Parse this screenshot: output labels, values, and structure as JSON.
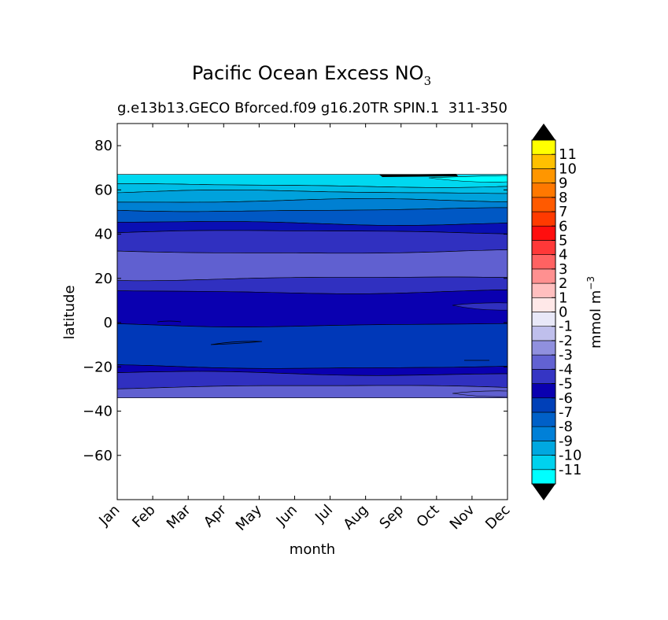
{
  "chart_data": {
    "type": "heatmap",
    "title": "Pacific Ocean Excess NO",
    "title_subscript": "3",
    "subtitle_left": "g.e13b13.GECO Bforced.f09 g16.20TR SPIN.1",
    "subtitle_right": "311-350",
    "xlabel": "month",
    "ylabel": "latitude",
    "x_categories": [
      "Jan",
      "Feb",
      "Mar",
      "Apr",
      "May",
      "Jun",
      "Jul",
      "Aug",
      "Sep",
      "Oct",
      "Nov",
      "Dec"
    ],
    "y_ticks": [
      80,
      60,
      40,
      20,
      0,
      -20,
      -40,
      -60
    ],
    "y_tick_labels": [
      "80",
      "60",
      "40",
      "20",
      "0",
      "−20",
      "−40",
      "−60"
    ],
    "ylim": [
      -80,
      90
    ],
    "data_lat_range": [
      -34,
      67
    ],
    "colorbar": {
      "label": "mmol m",
      "label_superscript": "−3",
      "levels": [
        -12,
        -11,
        -10,
        -9,
        -8,
        -7,
        -6,
        -5,
        -4,
        -3,
        -2,
        -1,
        0,
        1,
        2,
        3,
        4,
        5,
        6,
        7,
        8,
        9,
        10,
        11,
        12
      ],
      "tick_labels": [
        "11",
        "10",
        "9",
        "8",
        "7",
        "6",
        "5",
        "4",
        "3",
        "2",
        "1",
        "0",
        "-1",
        "-2",
        "-3",
        "-4",
        "-5",
        "-6",
        "-7",
        "-8",
        "-9",
        "-10",
        "-11"
      ],
      "colors": [
        "#00ffff",
        "#00d2ee",
        "#00a8e0",
        "#0080d8",
        "#0060c8",
        "#0040b8",
        "#0a00b0",
        "#3535c4",
        "#6262d2",
        "#9090de",
        "#bfbfec",
        "#e8e8f8",
        "#ffe8e8",
        "#ffbfbf",
        "#ff9090",
        "#ff6262",
        "#ff3838",
        "#ff0e0e",
        "#ff3a00",
        "#ff5a00",
        "#ff7800",
        "#ff9600",
        "#ffc000",
        "#ffff00"
      ],
      "extend_color": "#000000"
    },
    "bands": [
      {
        "lat": [
          62,
          67
        ],
        "value": -11,
        "color": "#00d8f0"
      },
      {
        "lat": [
          59,
          62
        ],
        "value": -10,
        "color": "#00bde6"
      },
      {
        "lat": [
          55,
          59
        ],
        "value": -9,
        "color": "#00a2dc"
      },
      {
        "lat": [
          51,
          55
        ],
        "value": -8,
        "color": "#0080d2"
      },
      {
        "lat": [
          45,
          51
        ],
        "value": -7,
        "color": "#0058c4"
      },
      {
        "lat": [
          41,
          45
        ],
        "value": -6,
        "color": "#0a10b4"
      },
      {
        "lat": [
          32,
          41
        ],
        "value": -5,
        "color": "#3030c0"
      },
      {
        "lat": [
          20,
          32
        ],
        "value": -4,
        "color": "#6060d0"
      },
      {
        "lat": [
          14,
          20
        ],
        "value": -5,
        "color": "#3030c0"
      },
      {
        "lat": [
          -1,
          14
        ],
        "value": -6,
        "color": "#0a00b0"
      },
      {
        "lat": [
          -20,
          -1
        ],
        "value": -7,
        "color": "#0038b8"
      },
      {
        "lat": [
          -23,
          -20
        ],
        "value": -6,
        "color": "#0a00b0"
      },
      {
        "lat": [
          -29,
          -23
        ],
        "value": -5,
        "color": "#3030c0"
      },
      {
        "lat": [
          -34,
          -29
        ],
        "value": -4,
        "color": "#6060d0"
      }
    ]
  }
}
